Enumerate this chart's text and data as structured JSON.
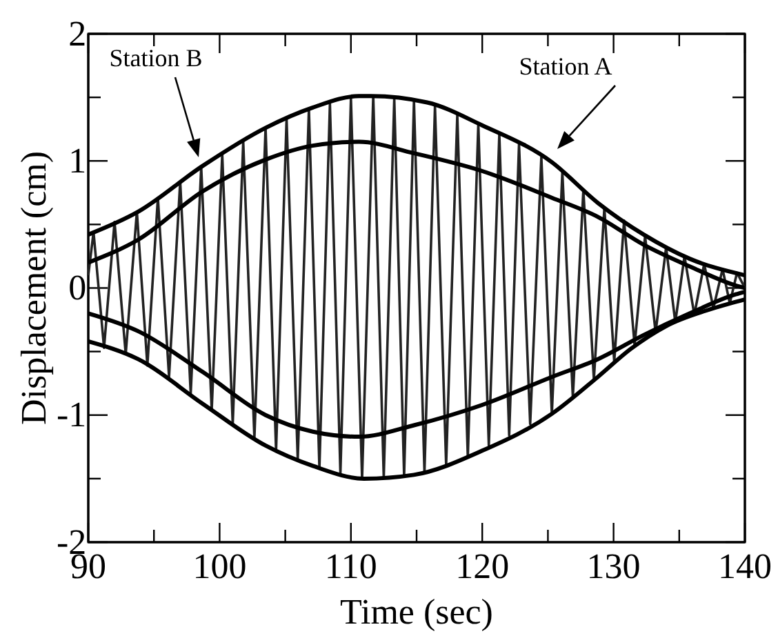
{
  "chart_data": {
    "type": "line",
    "xlabel": "Time (sec)",
    "ylabel": "Displacement (cm)",
    "xlim": [
      90,
      140
    ],
    "ylim": [
      -2,
      2
    ],
    "xticks": [
      90,
      {
        "value": 95,
        "label": null
      },
      100,
      {
        "value": 105,
        "label": null
      },
      110,
      {
        "value": 115,
        "label": null
      },
      120,
      {
        "value": 125,
        "label": null
      },
      130,
      {
        "value": 135,
        "label": null
      },
      140
    ],
    "yticks": [
      -2,
      {
        "value": -1.5,
        "label": null
      },
      -1,
      {
        "value": -0.5,
        "label": null
      },
      0,
      {
        "value": 0.5,
        "label": null
      },
      1,
      {
        "value": 1.5,
        "label": null
      },
      2
    ],
    "grid": false,
    "marker": "none",
    "line_style": "solid",
    "annotations": [
      "Station B",
      "Station A"
    ],
    "series": [
      {
        "color": "#222222",
        "x": [
          90,
          90.4,
          91.2,
          92.0,
          92.85,
          93.7,
          94.5,
          95.3,
          96.15,
          97.0,
          97.8,
          98.6,
          99.4,
          100.2,
          101.0,
          101.8,
          102.65,
          103.5,
          104.3,
          105.1,
          105.95,
          106.8,
          107.6,
          108.4,
          109.2,
          110.0,
          110.85,
          111.7,
          112.5,
          113.3,
          114.05,
          114.8,
          115.6,
          116.4,
          117.25,
          118.1,
          118.9,
          119.7,
          120.5,
          121.3,
          122.05,
          122.8,
          123.65,
          124.5,
          125.3,
          126.1,
          126.9,
          127.7,
          128.5,
          129.3,
          130.05,
          130.8,
          131.6,
          132.4,
          133.2,
          134.0,
          134.7,
          135.4,
          136.15,
          136.9,
          137.6,
          138.3,
          138.85,
          139.4,
          140
        ],
        "values": [
          0.1,
          0.44,
          -0.47,
          0.52,
          -0.52,
          0.6,
          -0.61,
          0.71,
          -0.7,
          0.84,
          -0.83,
          0.95,
          -0.96,
          1.05,
          -1.07,
          1.15,
          -1.18,
          1.26,
          -1.28,
          1.33,
          -1.35,
          1.41,
          -1.42,
          1.45,
          -1.46,
          1.49,
          -1.5,
          1.51,
          -1.49,
          1.49,
          -1.48,
          1.47,
          -1.45,
          1.43,
          -1.39,
          1.36,
          -1.33,
          1.29,
          -1.24,
          1.21,
          -1.16,
          1.13,
          -1.07,
          1.03,
          -0.99,
          0.91,
          -0.86,
          0.77,
          -0.72,
          0.63,
          -0.58,
          0.53,
          -0.45,
          0.41,
          -0.35,
          0.32,
          -0.27,
          0.25,
          -0.21,
          0.19,
          -0.16,
          0.15,
          -0.12,
          0.12,
          0.0
        ]
      },
      {
        "color": "#000000",
        "x": [
          90,
          93.8,
          98.7,
          103.5,
          107.1,
          110.6,
          111.5,
          115.8,
          120,
          125.3,
          128.8,
          132.3,
          135.8,
          140
        ],
        "values": [
          0.42,
          0.6,
          0.96,
          1.26,
          1.42,
          1.51,
          1.51,
          1.46,
          1.28,
          0.99,
          0.67,
          0.42,
          0.23,
          0.1
        ]
      },
      {
        "color": "#000000",
        "x": [
          90,
          93.8,
          98.7,
          103.5,
          107.1,
          111,
          114.8,
          120,
          125.3,
          128.8,
          131.3,
          134,
          137.6,
          140
        ],
        "values": [
          -0.42,
          -0.56,
          -0.91,
          -1.24,
          -1.4,
          -1.5,
          -1.47,
          -1.28,
          -0.99,
          -0.7,
          -0.48,
          -0.3,
          -0.16,
          -0.09
        ]
      },
      {
        "color": "#000000",
        "x": [
          90,
          93.8,
          98.7,
          103.5,
          107.1,
          110.6,
          114.8,
          120,
          125.3,
          128.8,
          132.3,
          135.8,
          139.3,
          140
        ],
        "values": [
          0.2,
          0.38,
          0.76,
          1.01,
          1.12,
          1.15,
          1.06,
          0.92,
          0.71,
          0.56,
          0.34,
          0.17,
          0.02,
          0.0
        ]
      },
      {
        "color": "#000000",
        "x": [
          90,
          93.8,
          98.7,
          103.5,
          107.1,
          110.6,
          114.8,
          120,
          125.3,
          128.8,
          132.3,
          135.8,
          139.3,
          140
        ],
        "values": [
          -0.2,
          -0.34,
          -0.66,
          -1.0,
          -1.13,
          -1.17,
          -1.08,
          -0.92,
          -0.7,
          -0.56,
          -0.37,
          -0.2,
          -0.05,
          -0.03
        ]
      }
    ]
  }
}
